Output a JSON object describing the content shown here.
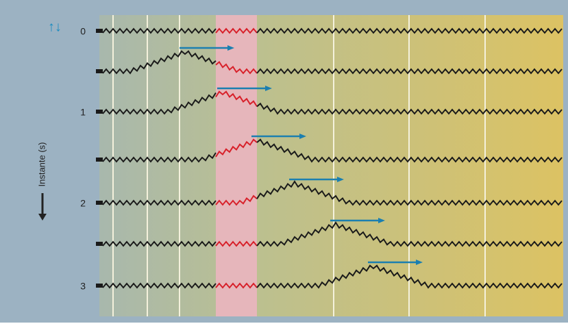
{
  "spin_symbol": "↑↓",
  "time_labels": [
    "0",
    "1",
    "2",
    "3"
  ],
  "axis_label": "Instante (s)"
}
